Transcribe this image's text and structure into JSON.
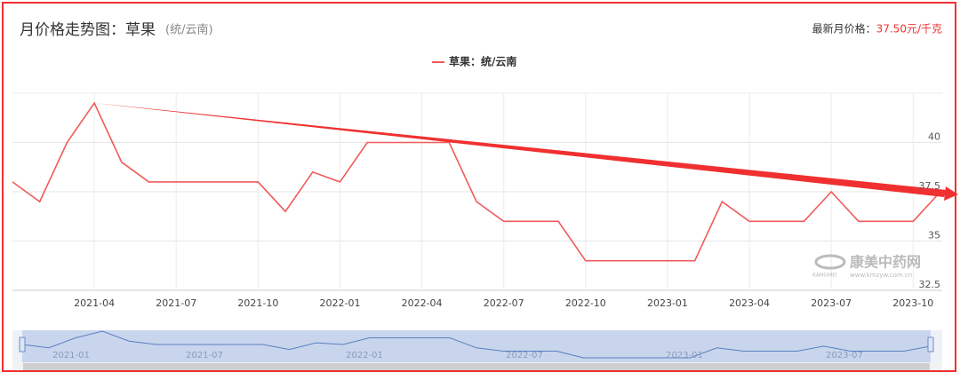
{
  "header": {
    "title": "月价格走势图：草果",
    "subtitle": "(统/云南)",
    "latest_label": "最新月价格：",
    "latest_value": "37.50元/千克"
  },
  "chart_data": {
    "type": "line",
    "categories": [
      null,
      null,
      null,
      "2021-04",
      null,
      null,
      "2021-07",
      null,
      null,
      "2021-10",
      null,
      null,
      "2022-01",
      null,
      null,
      "2022-04",
      null,
      null,
      "2022-07",
      null,
      null,
      "2022-10",
      null,
      null,
      "2023-01",
      null,
      null,
      "2023-04",
      null,
      null,
      "2023-07",
      null,
      null,
      "2023-10",
      null
    ],
    "series": [
      {
        "name": "草果：统/云南",
        "color": "#f05a5a",
        "values": [
          38,
          37,
          40,
          42,
          39,
          38,
          38,
          38,
          38,
          38,
          36.5,
          38.5,
          38,
          40,
          40,
          40,
          40,
          37,
          36,
          36,
          36,
          34,
          34,
          34,
          34,
          34,
          37,
          36,
          36,
          36,
          37.5,
          36,
          36,
          36,
          37.5
        ]
      }
    ],
    "ylim": [
      32.5,
      42.5
    ],
    "yticks": [
      32.5,
      35,
      37.5,
      40
    ],
    "grid": true,
    "legend": "top"
  },
  "watermark": {
    "name": "康美中药网",
    "brand": "KANGMEI",
    "url": "www.kmzyw.com.cn"
  },
  "zoom": {
    "labels": [
      "2021-01",
      "2021-07",
      "2022-01",
      "2022-07",
      "2023-01",
      "2023-07"
    ]
  }
}
